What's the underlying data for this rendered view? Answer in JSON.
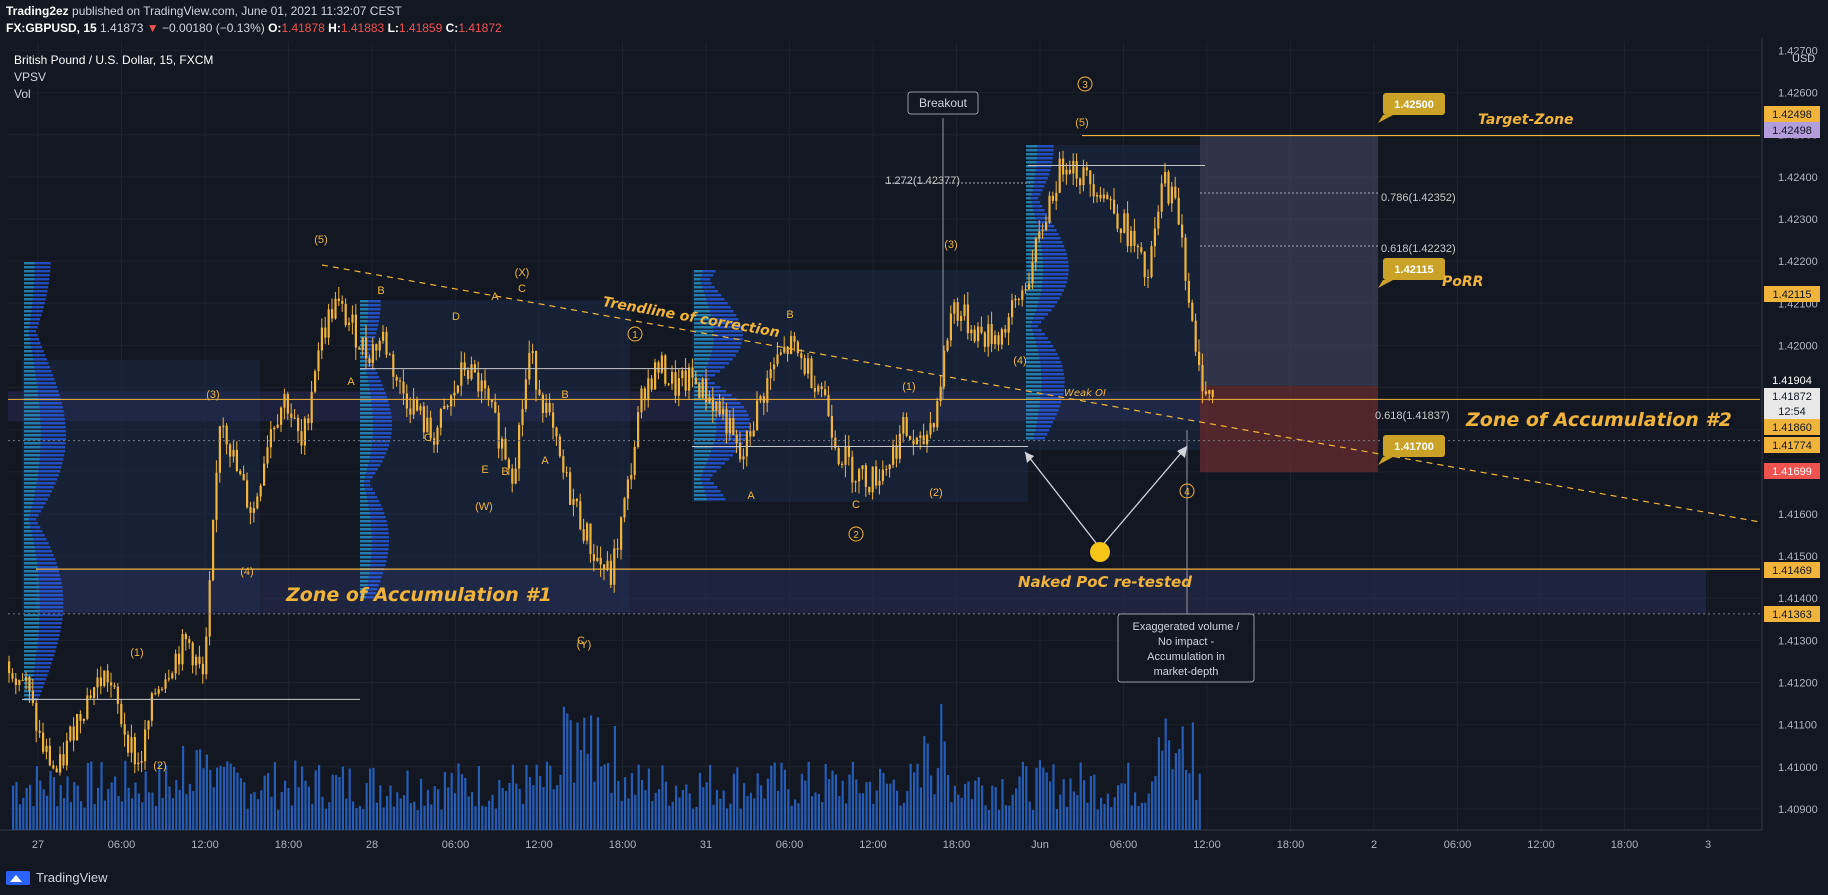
{
  "header": {
    "author": "Trading2ez",
    "published": "published on TradingView.com, June 01, 2021 11:32:07 CEST",
    "symbol": "FX:GBPUSD, 15",
    "last": "1.41873",
    "change": "−0.00180 (−0.13%)",
    "open_label": "O:",
    "open": "1.41878",
    "high_label": "H:",
    "high": "1.41883",
    "low_label": "L:",
    "low": "1.41859",
    "close_label": "C:",
    "close": "1.41872"
  },
  "legend": {
    "title": "British Pound / U.S. Dollar, 15, FXCM",
    "ind1": "VPSV",
    "ind2": "Vol"
  },
  "footer": {
    "brand": "TradingView"
  },
  "colors": {
    "bg": "#131722",
    "grid": "#1e222d",
    "candle": "#f0b43a",
    "annot": "#f0b43a",
    "volume": "#2a6fdb",
    "profile": "#2962ff",
    "profile_hi": "#26a69a",
    "target_box": "#4a4a6a",
    "stop_box": "#6b2d2d"
  },
  "chart_data": {
    "type": "candlestick",
    "title": "British Pound / U.S. Dollar, 15, FXCM",
    "currency": "USD",
    "ylim": [
      1.4085,
      1.4272
    ],
    "y_ticks": [
      "1.42700",
      "1.42600",
      "1.42500",
      "1.42400",
      "1.42300",
      "1.42200",
      "1.42100",
      "1.42000",
      "1.41900",
      "1.41800",
      "1.41700",
      "1.41600",
      "1.41500",
      "1.41400",
      "1.41300",
      "1.41200",
      "1.41100",
      "1.41000",
      "1.40900"
    ],
    "x_ticks": [
      "27",
      "06:00",
      "12:00",
      "18:00",
      "28",
      "06:00",
      "12:00",
      "18:00",
      "31",
      "06:00",
      "12:00",
      "18:00",
      "Jun",
      "06:00",
      "12:00",
      "18:00",
      "2",
      "06:00",
      "12:00",
      "18:00",
      "3"
    ],
    "close_path": [
      1.4125,
      1.412,
      1.4105,
      1.4098,
      1.411,
      1.4118,
      1.4122,
      1.411,
      1.41,
      1.4118,
      1.4125,
      1.413,
      1.412,
      1.4185,
      1.417,
      1.416,
      1.418,
      1.4188,
      1.4175,
      1.42,
      1.421,
      1.4205,
      1.4198,
      1.4202,
      1.419,
      1.4185,
      1.4178,
      1.4185,
      1.4195,
      1.419,
      1.418,
      1.417,
      1.4198,
      1.4185,
      1.417,
      1.416,
      1.415,
      1.4145,
      1.4165,
      1.419,
      1.4195,
      1.419,
      1.4192,
      1.4188,
      1.4183,
      1.4172,
      1.4185,
      1.4195,
      1.42,
      1.4195,
      1.419,
      1.4175,
      1.417,
      1.4168,
      1.4172,
      1.418,
      1.4175,
      1.4185,
      1.421,
      1.4205,
      1.4202,
      1.4203,
      1.421,
      1.422,
      1.4235,
      1.4245,
      1.424,
      1.4238,
      1.4232,
      1.4225,
      1.4215,
      1.424,
      1.423,
      1.4195,
      1.4187
    ],
    "volume_note": "Vol histogram at bottom",
    "price_labels": [
      {
        "text": "1.42498",
        "color": "#f0b43a"
      },
      {
        "text": "1.42498",
        "color": "#b39ddb"
      },
      {
        "text": "1.42115",
        "color": "#f0b43a"
      },
      {
        "text": "1.41904",
        "color": "#ffffff"
      },
      {
        "text": "1.41872",
        "color": "#ffffff"
      },
      {
        "text": "12:54",
        "color": "#ffffff"
      },
      {
        "text": "1.41860",
        "color": "#f0b43a"
      },
      {
        "text": "1.41774",
        "color": "#f0b43a"
      },
      {
        "text": "1.41699",
        "color": "#ef5350"
      },
      {
        "text": "1.41469",
        "color": "#f0b43a"
      },
      {
        "text": "1.41363",
        "color": "#f0b43a"
      }
    ],
    "horizontal_levels": [
      1.42498,
      1.41872,
      1.41469,
      1.41363
    ],
    "fib_labels": [
      "1.272(1.42377)",
      "0.786(1.42352)",
      "0.618(1.42232)",
      "0.618(1.41837)"
    ],
    "flags": [
      "1.42500",
      "1.42115",
      "1.41700"
    ],
    "annotations": {
      "breakout": "Breakout",
      "target_zone": "Target-Zone",
      "porr": "PoRR",
      "zone1": "Zone of Accumulation #1",
      "zone2": "Zone of Accumulation #2",
      "trendline": "Trendline of correction",
      "naked_poc": "Naked PoC re-tested",
      "weak_oi": "Weak OI",
      "note_lines": [
        "Exaggerated volume /",
        "No impact -",
        "Accumulation in",
        "market-depth"
      ],
      "wave_labels": [
        "(5)",
        "(X)",
        "(3)",
        "(4)",
        "(1)",
        "(2)",
        "(W)",
        "(Y)",
        "(5)",
        "(3)",
        "(4)",
        "(1)",
        "(2)",
        "A",
        "B",
        "C",
        "D",
        "E",
        "A",
        "B",
        "C",
        "A",
        "B",
        "C",
        "A",
        "B",
        "C",
        "1",
        "2",
        "3",
        "4"
      ]
    }
  }
}
